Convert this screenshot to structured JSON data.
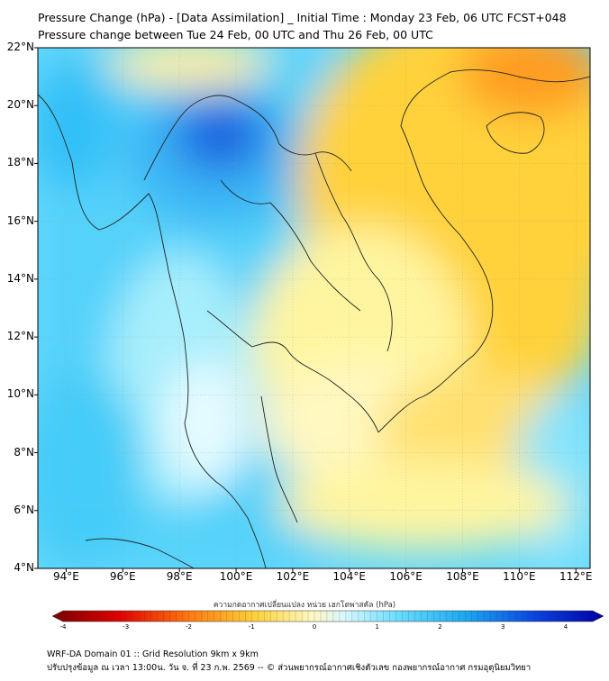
{
  "header": {
    "title_line1": "Pressure Change (hPa) - [Data Assimilation] _ Initial Time : Monday 23 Feb, 06 UTC FCST+048",
    "title_line2": "Pressure change between Tue 24 Feb, 00 UTC and Thu 26 Feb, 00 UTC"
  },
  "map": {
    "lat_ticks": [
      "22°N",
      "20°N",
      "18°N",
      "16°N",
      "14°N",
      "12°N",
      "10°N",
      "8°N",
      "6°N",
      "4°N"
    ],
    "lon_ticks": [
      "94°E",
      "96°E",
      "98°E",
      "100°E",
      "102°E",
      "104°E",
      "106°E",
      "108°E",
      "110°E",
      "112°E"
    ],
    "lat_range": [
      4,
      22
    ],
    "lon_range": [
      93,
      112.5
    ],
    "colors": {
      "strong_rise": "#1a66e0",
      "rise": "#33c8ff",
      "light_rise": "#aaf0ff",
      "neutral": "#fffff0",
      "light_fall": "#fff5a0",
      "fall": "#ffd23a",
      "strong_fall": "#ff9d20",
      "coast": "#222222"
    }
  },
  "colorbar": {
    "label": "ความกดอากาศเปลี่ยนแปลง หน่วย เฮกโตพาสคัล (hPa)",
    "ticks": [
      "-4",
      "-3",
      "-2",
      "-1",
      "0",
      "1",
      "2",
      "3",
      "4"
    ],
    "range": [
      -4,
      4
    ]
  },
  "footer": {
    "line1": "WRF-DA Domain 01 :: Grid Resolution 9km x 9km",
    "line2": "ปรับปรุงข้อมูล ณ เวลา 13:00น. วัน จ. ที่ 23 ก.พ. 2569 -- © ส่วนพยากรณ์อากาศเชิงตัวเลข กองพยากรณ์อากาศ กรมอุตุนิยมวิทยา"
  }
}
